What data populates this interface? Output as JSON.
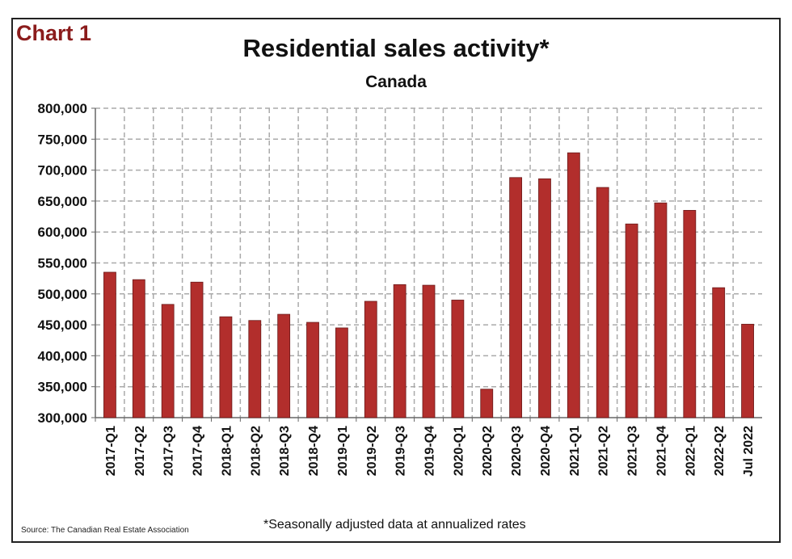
{
  "chart_data": {
    "type": "bar",
    "label": "Chart 1",
    "title": "Residential sales activity*",
    "subtitle": "Canada",
    "xlabel": "",
    "ylabel": "",
    "ylim": [
      300000,
      800000
    ],
    "yticks": [
      "300,000",
      "350,000",
      "400,000",
      "450,000",
      "500,000",
      "550,000",
      "600,000",
      "650,000",
      "700,000",
      "750,000",
      "800,000"
    ],
    "grid": true,
    "bar_color": "#b22e2c",
    "categories": [
      "2017-Q1",
      "2017-Q2",
      "2017-Q3",
      "2017-Q4",
      "2018-Q1",
      "2018-Q2",
      "2018-Q3",
      "2018-Q4",
      "2019-Q1",
      "2019-Q2",
      "2019-Q3",
      "2019-Q4",
      "2020-Q1",
      "2020-Q2",
      "2020-Q3",
      "2020-Q4",
      "2021-Q1",
      "2021-Q2",
      "2021-Q3",
      "2021-Q4",
      "2022-Q1",
      "2022-Q2",
      "Jul 2022"
    ],
    "values": [
      535000,
      523000,
      483000,
      519000,
      463000,
      457000,
      467000,
      454000,
      445000,
      488000,
      515000,
      514000,
      490000,
      346000,
      688000,
      686000,
      728000,
      672000,
      613000,
      647000,
      635000,
      510000,
      451000
    ],
    "source": "Source: The Canadian Real Estate Association",
    "footnote": "*Seasonally adjusted data at annualized rates"
  }
}
